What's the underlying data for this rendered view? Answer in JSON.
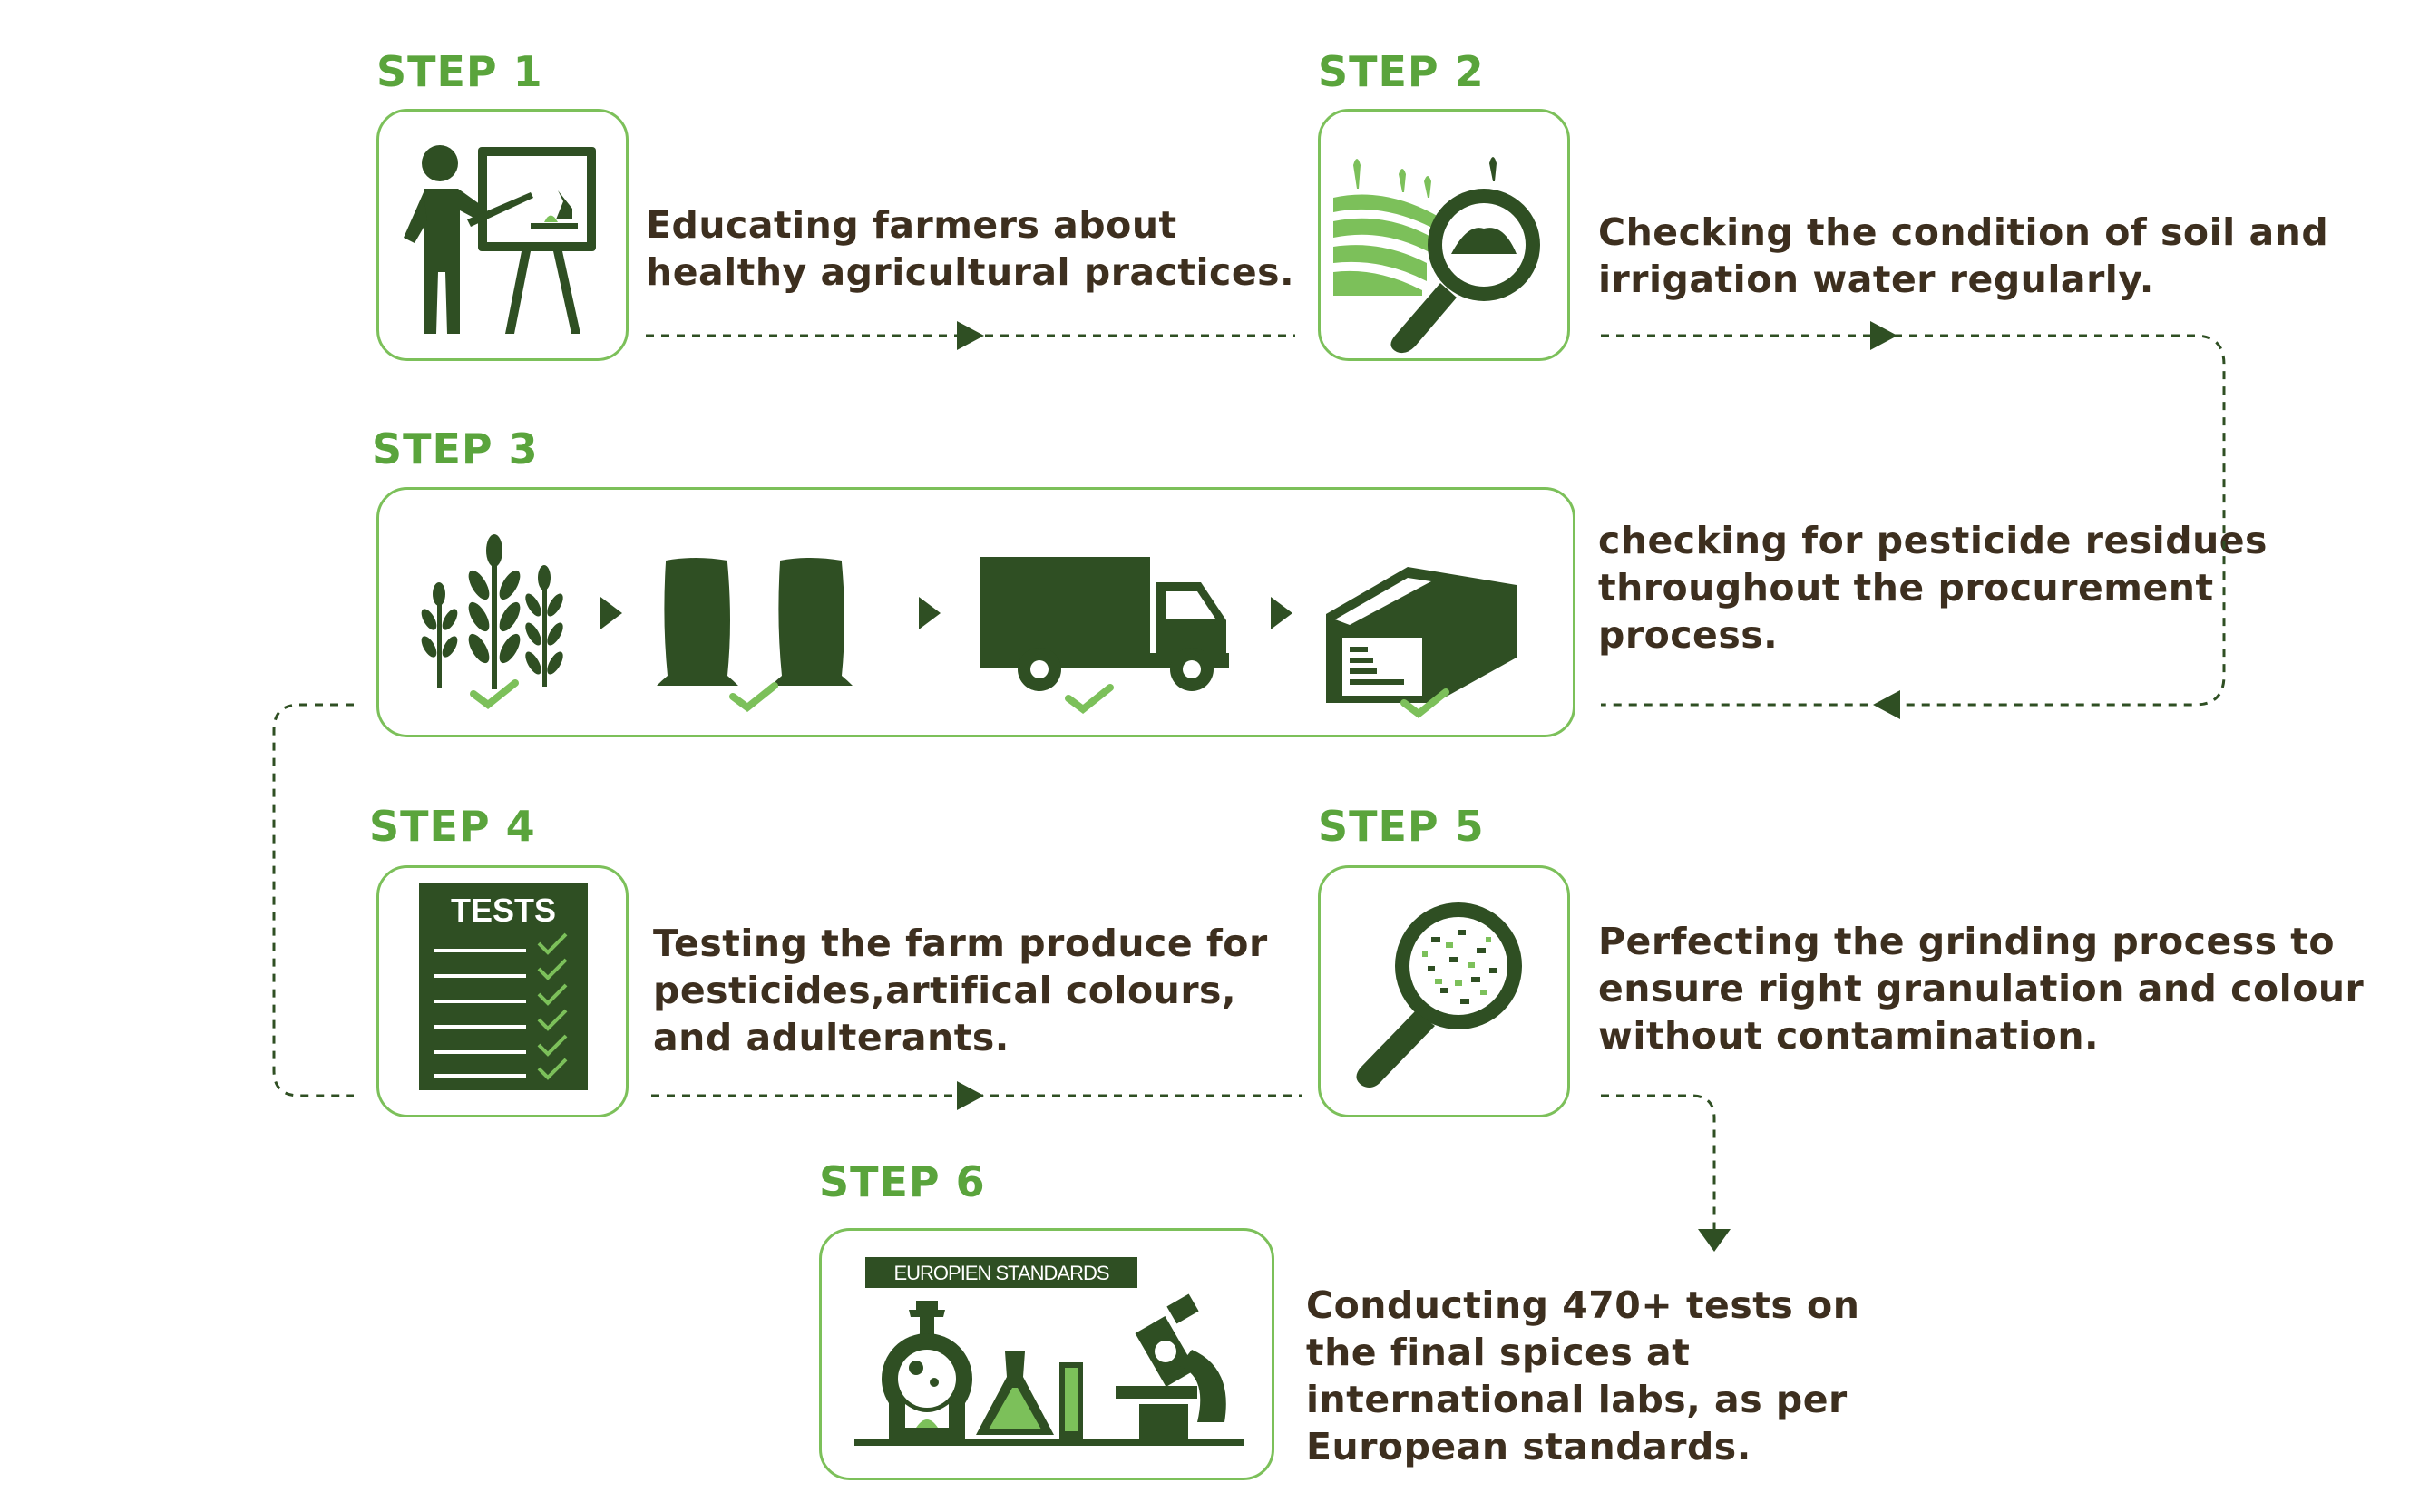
{
  "steps": [
    {
      "label": "STEP 1",
      "text": "Educating farmers about\nhealthy agricultural practices."
    },
    {
      "label": "STEP 2",
      "text": "Checking the condition of soil and\nirrigation water regularly."
    },
    {
      "label": "STEP 3",
      "text": "checking for pesticide residues\nthroughout the procurement\nprocess."
    },
    {
      "label": "STEP 4",
      "text": "Testing the farm produce for\npesticides,artifical colours,\nand adulterants."
    },
    {
      "label": "STEP 5",
      "text": "Perfecting the grinding process to\nensure right granulation and colour\nwithout contamination."
    },
    {
      "label": "STEP 6",
      "text": "Conducting 470+ tests on\nthe final spices at\ninternational labs, as per\nEuropean standards."
    }
  ],
  "icon_texts": {
    "tests": "TESTS",
    "standards": "EUROPIEN STANDARDS"
  },
  "colors": {
    "dark_green": "#2f4f23",
    "accent_green": "#7cc05a",
    "label_green": "#5aa43c",
    "text": "#3d2f1f"
  }
}
